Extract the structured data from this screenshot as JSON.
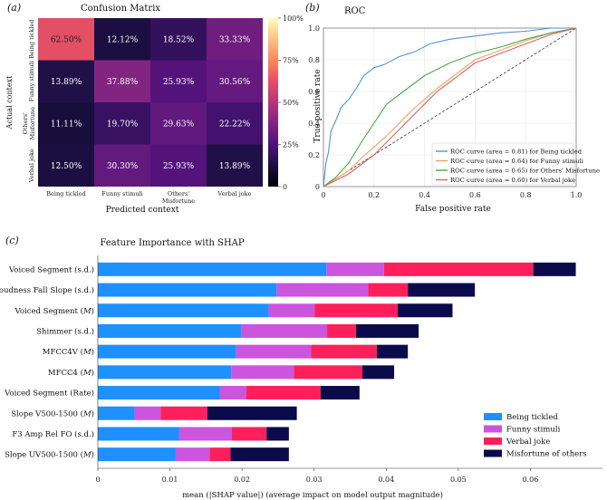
{
  "panel_labels": {
    "a": "(a)",
    "b": "(b)",
    "c": "(c)"
  },
  "chart_data": [
    {
      "type": "heatmap",
      "title": "Confusion Matrix",
      "xlabel": "Predicted context",
      "ylabel": "Actual context",
      "x_categories": [
        "Being tickled",
        "Funny stimuli",
        "Others'\nMisfortune",
        "Verbal joke"
      ],
      "y_categories": [
        "Being tickled",
        "Funny stimuli",
        "Others'\nMisfortune",
        "Verbal joke"
      ],
      "cells": [
        [
          "62.50%",
          "12.12%",
          "18.52%",
          "33.33%"
        ],
        [
          "13.89%",
          "37.88%",
          "25.93%",
          "30.56%"
        ],
        [
          "11.11%",
          "19.70%",
          "29.63%",
          "22.22%"
        ],
        [
          "12.50%",
          "30.30%",
          "25.93%",
          "13.89%"
        ]
      ],
      "values": [
        [
          62.5,
          12.12,
          18.52,
          33.33
        ],
        [
          13.89,
          37.88,
          25.93,
          30.56
        ],
        [
          11.11,
          19.7,
          29.63,
          22.22
        ],
        [
          12.5,
          30.3,
          25.93,
          13.89
        ]
      ],
      "colorbar_ticks": [
        "0",
        "25%",
        "50%",
        "75%",
        "100%"
      ],
      "colorbar_values": [
        0,
        25,
        50,
        75,
        100
      ],
      "vmin": 0,
      "vmax": 100
    },
    {
      "type": "line",
      "title": "ROC",
      "xlabel": "False positive rate",
      "ylabel": "True positive rate",
      "xlim": [
        0,
        1
      ],
      "ylim": [
        0,
        1
      ],
      "x_ticks": [
        "0",
        "0.2",
        "0.4",
        "0.6",
        "0.8",
        "1.0"
      ],
      "y_ticks": [
        "0",
        "0.2",
        "0.4",
        "0.6",
        "0.8",
        "1.0"
      ],
      "tick_values": [
        0,
        0.2,
        0.4,
        0.6,
        0.8,
        1.0
      ],
      "grid": true,
      "legend_position": "bottom-right",
      "series": [
        {
          "name": "ROC curve (area = 0.81) for Being tickled",
          "color": "#4f93d0",
          "x": [
            0,
            0.01,
            0.02,
            0.03,
            0.05,
            0.07,
            0.1,
            0.13,
            0.16,
            0.2,
            0.24,
            0.3,
            0.36,
            0.42,
            0.5,
            0.6,
            0.7,
            0.8,
            0.9,
            1.0
          ],
          "y": [
            0,
            0.15,
            0.22,
            0.35,
            0.42,
            0.5,
            0.55,
            0.62,
            0.7,
            0.75,
            0.77,
            0.82,
            0.85,
            0.9,
            0.93,
            0.95,
            0.97,
            0.98,
            1.0,
            1.0
          ]
        },
        {
          "name": "ROC curve (area = 0.64) for Funny stimuli",
          "color": "#f0a060",
          "x": [
            0,
            0.05,
            0.1,
            0.15,
            0.2,
            0.25,
            0.3,
            0.35,
            0.4,
            0.45,
            0.5,
            0.55,
            0.6,
            0.7,
            0.8,
            0.9,
            1.0
          ],
          "y": [
            0,
            0.05,
            0.1,
            0.18,
            0.25,
            0.32,
            0.4,
            0.48,
            0.55,
            0.62,
            0.68,
            0.74,
            0.8,
            0.86,
            0.92,
            0.97,
            1.0
          ]
        },
        {
          "name": "ROC curve (area = 0.65) for Others' Misfortune",
          "color": "#4aa84a",
          "x": [
            0,
            0.05,
            0.1,
            0.15,
            0.2,
            0.25,
            0.3,
            0.35,
            0.4,
            0.5,
            0.6,
            0.7,
            0.8,
            0.9,
            1.0
          ],
          "y": [
            0,
            0.06,
            0.15,
            0.28,
            0.4,
            0.52,
            0.58,
            0.64,
            0.7,
            0.78,
            0.84,
            0.88,
            0.93,
            0.97,
            1.0
          ]
        },
        {
          "name": "ROC curve (area = 0.60) for Verbal joke",
          "color": "#e06060",
          "x": [
            0,
            0.05,
            0.1,
            0.15,
            0.2,
            0.25,
            0.3,
            0.35,
            0.4,
            0.45,
            0.5,
            0.55,
            0.6,
            0.7,
            0.8,
            0.9,
            1.0
          ],
          "y": [
            0,
            0.04,
            0.08,
            0.14,
            0.2,
            0.28,
            0.36,
            0.44,
            0.52,
            0.6,
            0.66,
            0.72,
            0.78,
            0.84,
            0.9,
            0.96,
            1.0
          ]
        }
      ],
      "reference_line": {
        "x": [
          0,
          1
        ],
        "y": [
          0,
          1
        ]
      }
    },
    {
      "type": "bar",
      "orientation": "horizontal",
      "stacked": true,
      "title": "Feature Importance with SHAP",
      "xlabel": "mean (|SHAP value|) (average impact on model output magnitude)",
      "xlim": [
        0,
        0.07
      ],
      "x_ticks": [
        "0",
        "0.01",
        "0.02",
        "0.03",
        "0.04",
        "0.05",
        "0.06"
      ],
      "x_tick_values": [
        0,
        0.01,
        0.02,
        0.03,
        0.04,
        0.05,
        0.06
      ],
      "legend_position": "bottom-right",
      "categories": [
        {
          "base": "Voiced Segment (s.d.)",
          "ital": ""
        },
        {
          "base": "Loudness Fall Slope (s.d.)",
          "ital": ""
        },
        {
          "base": "Voiced Segment (",
          "ital": "M",
          "tail": ")"
        },
        {
          "base": "Shimmer (s.d.)",
          "ital": ""
        },
        {
          "base": "MFCC4V (",
          "ital": "M",
          "tail": ")"
        },
        {
          "base": "MFCC4 (",
          "ital": "M",
          "tail": ")"
        },
        {
          "base": "Voiced Segment (Rate)",
          "ital": ""
        },
        {
          "base": "Slope V500-1500 (",
          "ital": "M",
          "tail": ")"
        },
        {
          "base": "F3 Amp Rel FO (s.d.)",
          "ital": ""
        },
        {
          "base": "Slope UV500-1500 (",
          "ital": "M",
          "tail": ")"
        }
      ],
      "series": [
        {
          "name": "Being tickled",
          "color": "#1e90ff",
          "values": [
            0.0317,
            0.0248,
            0.0237,
            0.0199,
            0.0192,
            0.0185,
            0.0169,
            0.0051,
            0.0113,
            0.0108
          ]
        },
        {
          "name": "Funny stimuli",
          "color": "#cc55dd",
          "values": [
            0.008,
            0.0127,
            0.0064,
            0.0119,
            0.0104,
            0.0087,
            0.0037,
            0.0036,
            0.0073,
            0.0047
          ]
        },
        {
          "name": "Verbal joke",
          "color": "#ff1f5a",
          "values": [
            0.0207,
            0.0055,
            0.0115,
            0.004,
            0.0091,
            0.0095,
            0.0103,
            0.0065,
            0.0048,
            0.0029
          ]
        },
        {
          "name": "Misfortune of others",
          "color": "#0b0b4b",
          "values": [
            0.0059,
            0.0093,
            0.0076,
            0.0087,
            0.0043,
            0.0044,
            0.0054,
            0.0124,
            0.0031,
            0.0081
          ]
        }
      ]
    }
  ]
}
